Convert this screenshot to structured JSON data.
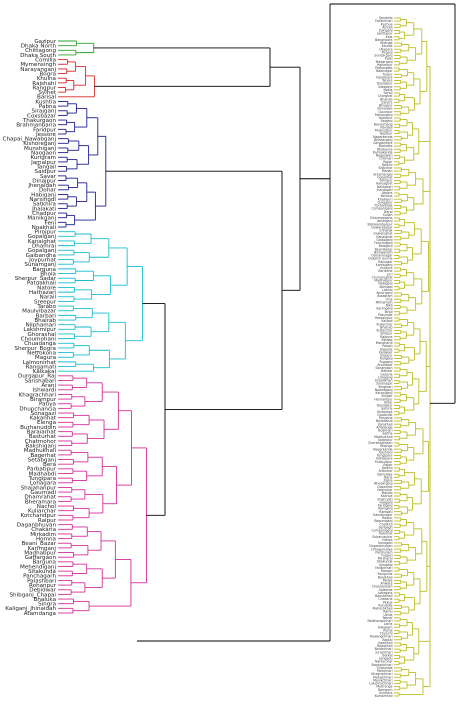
{
  "colors": {
    "green": "#2ca02c",
    "red": "#d62728",
    "navy": "#1f1f8f",
    "cyan": "#17becf",
    "magenta": "#d62f9a",
    "olive": "#bcbd22",
    "link": "#000000"
  },
  "clusters": [
    {
      "color_key": "green",
      "labels": [
        "Gazipur",
        "Dhaka North",
        "Chittagong",
        "Dhaka South"
      ]
    },
    {
      "color_key": "red",
      "labels": [
        "Comilla",
        "Mymensingh",
        "Narayanganj",
        "Bogra",
        "Khulna",
        "Rajshahi",
        "Rangpur",
        "Sylhet",
        "Barisal"
      ]
    },
    {
      "color_key": "navy",
      "labels": [
        "Kushtia",
        "Pabna",
        "Sirajganj",
        "Coxsbazar",
        "Thakurgaon",
        "Brahmanbaria",
        "Faridpur",
        "Jessore",
        "Chapai_Nawabganj",
        "Kishoreganj",
        "Munshiganj",
        "Naogaon",
        "Kurigram",
        "Jamalpur",
        "Tangail",
        "Saidpur",
        "Savar",
        "Dinajpur",
        "Jhenaidah",
        "Dohar",
        "Habiganj",
        "Narsingdi",
        "Satkhira",
        "Jhalakati",
        "Chadpur",
        "Manikganj",
        "Feni",
        "Noakhali"
      ]
    },
    {
      "color_key": "cyan",
      "labels": [
        "Pirojpur",
        "Gopalganj",
        "Kanaighat",
        "Dhamrai",
        "Gopalganj",
        "Gaibandha",
        "Joypurhat",
        "Sunamganj",
        "Barguna",
        "Bhola",
        "Sherpur_Sadar",
        "Patuakhali",
        "Natore",
        "Hathazari",
        "Narail",
        "Sreepur",
        "Tarabo",
        "Maulvibazar",
        "Barbari",
        "Bhairab",
        "Nilphamari",
        "Lakshmipur",
        "Ghorashal",
        "Choumohani",
        "Chuadanga",
        "Sherpur_Bogra",
        "Netrokona",
        "Magura",
        "Lalmonirhat",
        "Rangamati",
        "Kalkakai"
      ]
    },
    {
      "color_key": "magenta",
      "labels": [
        "Durgapur_Raj",
        "Sarishabari",
        "Arani",
        "Ishwardi",
        "Khagrachhari",
        "Birampur",
        "Patiya",
        "Dhupchancia",
        "Sonagazi",
        "Kakanhat",
        "Elenga",
        "Burhanuddin",
        "Baraiarhat",
        "Basturhat",
        "Chatmohor",
        "Bakshiganj",
        "Madhukhali",
        "Bagerhat",
        "Setabganj",
        "Bera",
        "Parbatipur",
        "Madhabdi",
        "Tungipara",
        "Lohagara",
        "Shajahanpur",
        "Gaurnadi",
        "Dhamrahat",
        "Bheramara",
        "Nachol",
        "Kuliarchar",
        "Kotchandpur",
        "Raipur",
        "Daganbhuyan",
        "Chakaria",
        "Mirkadim",
        "Homna",
        "Beani_Bazar",
        "Karimganj",
        "Madhabpur",
        "Gaffargaon",
        "Barguna",
        "Mehendiganj",
        "Sitakunda",
        "Panchagarh",
        "Palashbari",
        "Rohanpur",
        "Debidwar",
        "Shibganj_Chapai",
        "Bhaluka",
        "Singra",
        "Kaliganj_Jhinaidah",
        "Atamdanga"
      ]
    }
  ],
  "right_panel": {
    "color_key": "olive",
    "labels": [
      "Sandwip",
      "Fatikchhari",
      "Kachua",
      "Amtali",
      "Zakiganj",
      "Jaintiapur",
      "Kala",
      "Banaripara",
      "Bhanga",
      "Kaunia",
      "Ullapara",
      "Pirganj",
      "Sundarganj",
      "Kalai",
      "Madarganj",
      "Hakimpur",
      "Pathargata",
      "Nabinagar",
      "Fulpur",
      "Kotalipara",
      "Tanore",
      "Daulatpur",
      "Kalapara",
      "Nakla",
      "Sarail",
      "Charghat",
      "Bhairab",
      "Zanjira",
      "Bhuapur",
      "Shivalaya",
      "Gouripur",
      "Mohanganj",
      "Islampur",
      "Raiganj",
      "Baniachang",
      "Nandail",
      "Muksudpur",
      "Bajitpur",
      "Nagarkanda",
      "Bhedarganj",
      "Gangachara",
      "Barhatta",
      "Dhobaura",
      "Kalmakanda",
      "Nageswari",
      "Chilmari",
      "Rajoir",
      "Kalkini",
      "Shibchar",
      "Madan",
      "Sreemangal",
      "Gosairhat",
      "Tahirpur",
      "Haluaghat",
      "Nalitabari",
      "Jhenaigati",
      "Atpara",
      "Kendua",
      "Khaliajuri",
      "Durgapur",
      "Purbadhala",
      "Companiganj",
      "Derai",
      "Sullah",
      "Dharmapasha",
      "Jamalganj",
      "Bishwambarpur",
      "Dowarabazar",
      "Chhatak",
      "Gowainghat",
      "Kanaighat",
      "Golapganj",
      "Fenchuganj",
      "Balaganj",
      "Beanibazar",
      "Bishwanath",
      "Osmaninagar",
      "Dakshin Surma",
      "Rajnagar",
      "Kamalganj",
      "Kulaura",
      "Barlekha",
      "Juri",
      "Chunarughat",
      "Madhabpur",
      "Nabiganj",
      "Bahubal",
      "Lakhai",
      "Ajmiriganj",
      "Astagram",
      "Itna",
      "Mithamain",
      "Nikli",
      "Karimganj",
      "Tarail",
      "Pakundia",
      "Hossainpur",
      "Katiadi",
      "Kuliarchar",
      "Bhairab",
      "Kuliarchar",
      "Shibpur",
      "Raipura",
      "Belabo",
      "Monohardi",
      "Palash",
      "Kapasia",
      "Kaliakair",
      "Sreepur",
      "Kaliganj",
      "Rupganj",
      "Araihazar",
      "Sonargaon",
      "Bandar",
      "Gazaria",
      "Lohajang",
      "Sirajdikhan",
      "Sreenagar",
      "Tongibari",
      "Nawabganj",
      "Keraniganj",
      "Singair",
      "Harirampur",
      "Ghior",
      "Daulatpur",
      "Saturia",
      "Shibalaya",
      "Goalanda",
      "Pangsha",
      "Baliakandi",
      "Kalukhali",
      "Alfadanga",
      "Boalmari",
      "Saltha",
      "Madhukhali",
      "Sadarpur",
      "Charbhadrasan",
      "Bhanga",
      "Nagarkanda",
      "Kashiani",
      "Tungipara",
      "Kotalipara",
      "Muksudpur",
      "Rajoir",
      "Kalkini",
      "Shibchar",
      "Damudya",
      "Naria",
      "Zajira",
      "Bhedarganj",
      "Gosairhat",
      "Haimchar",
      "Matlab",
      "Kachua",
      "Shahrasti",
      "Hajiganj",
      "Faridganj",
      "Ramganj",
      "Ramgati",
      "Kamalnagar",
      "Raipur",
      "Begumganj",
      "Chatkhil",
      "Senbagh",
      "Companiganj",
      "Kabirhat",
      "Subarnachar",
      "Hatiya",
      "Sonagazi",
      "Daganbhuiyan",
      "Chhagalnaiya",
      "Parshuram",
      "Fulgazi",
      "Mirsharai",
      "Sitakunda",
      "Sandwip",
      "Fatikchhari",
      "Raozan",
      "Rangunia",
      "Boalkhali",
      "Patiya",
      "Anwara",
      "Chandanaish",
      "Satkania",
      "Lohagara",
      "Banshkhali",
      "Chakaria",
      "Pekua",
      "Kutubdia",
      "Maheshkhali",
      "Ramu",
      "Ukhia",
      "Teknaf",
      "Naikhongchhari",
      "Lama",
      "Alikadam",
      "Ruma",
      "Thanchi",
      "Rowangchhari",
      "Kaptai",
      "Kawkhali",
      "Rajasthali",
      "Belaichhari",
      "Juraichhari",
      "Barkal",
      "Langadu",
      "Naniarchar",
      "Baghaichhari",
      "Dighinala",
      "Panchhari",
      "Khagrachhari",
      "Mahalchhari",
      "Manikchhari",
      "Lakshmichhari",
      "Matiranga",
      "Ramgarh",
      "Guimara",
      "Kumarkhali"
    ]
  }
}
